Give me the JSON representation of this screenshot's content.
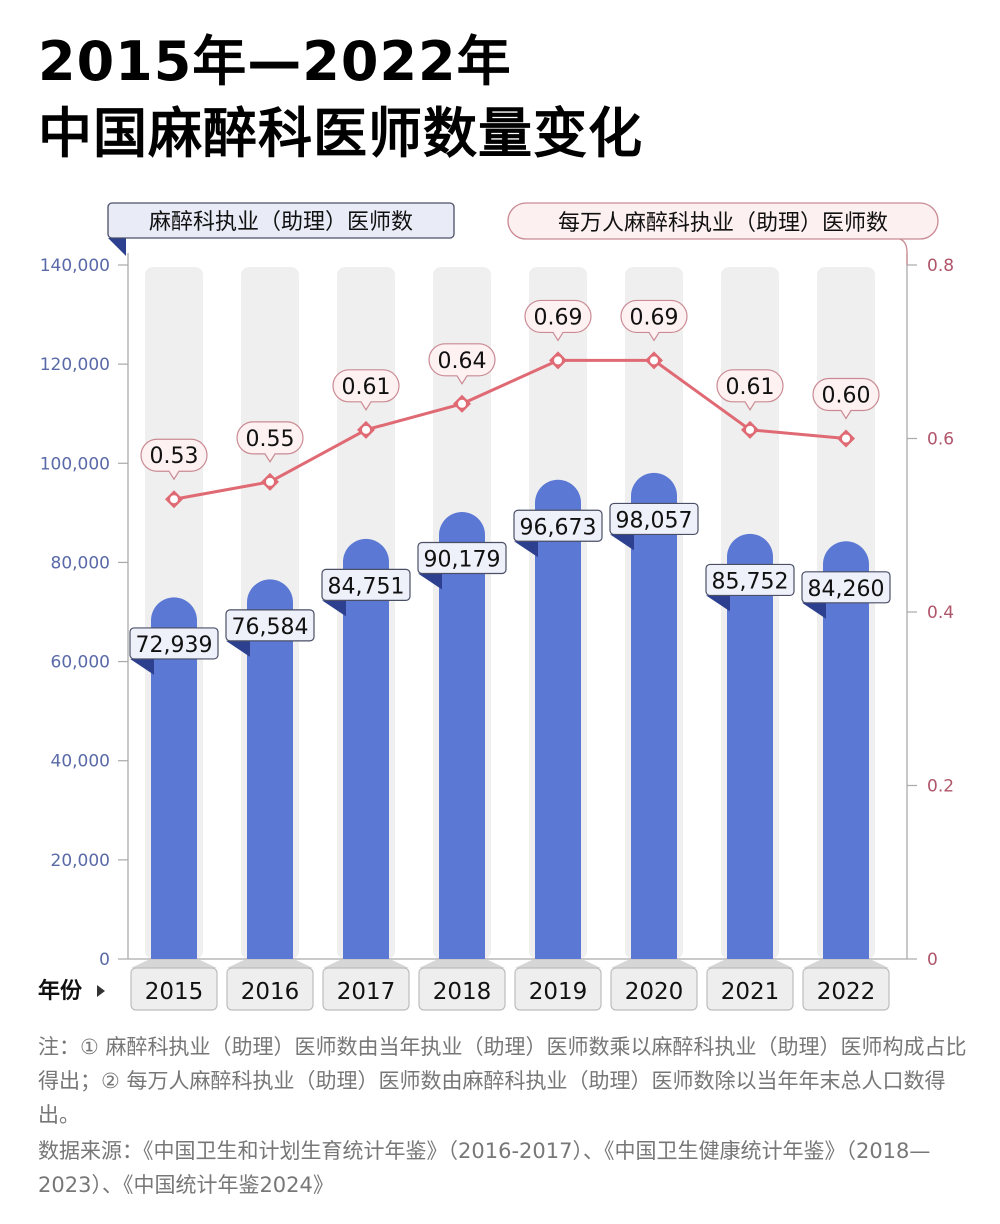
{
  "title": {
    "line1": "2015年—2022年",
    "line2": "中国麻醉科医师数量变化"
  },
  "chart_data": {
    "type": "bar",
    "categories": [
      "2015",
      "2016",
      "2017",
      "2018",
      "2019",
      "2020",
      "2021",
      "2022"
    ],
    "xlabel": "年份",
    "series": [
      {
        "name": "麻醉科执业（助理）医师数",
        "type": "bar",
        "axis": "left",
        "color": "#5b78d4",
        "values": [
          72939,
          76584,
          84751,
          90179,
          96673,
          98057,
          85752,
          84260
        ],
        "labels": [
          "72,939",
          "76,584",
          "84,751",
          "90,179",
          "96,673",
          "98,057",
          "85,752",
          "84,260"
        ]
      },
      {
        "name": "每万人麻醉科执业（助理）医师数",
        "type": "line",
        "axis": "right",
        "color": "#e06a74",
        "values": [
          0.53,
          0.55,
          0.61,
          0.64,
          0.69,
          0.69,
          0.61,
          0.6
        ],
        "labels": [
          "0.53",
          "0.55",
          "0.61",
          "0.64",
          "0.69",
          "0.69",
          "0.61",
          "0.60"
        ]
      }
    ],
    "y_left": {
      "lim": [
        0,
        140000
      ],
      "ticks": [
        0,
        20000,
        40000,
        60000,
        80000,
        100000,
        120000,
        140000
      ],
      "tick_labels": [
        "0",
        "20,000",
        "40,000",
        "60,000",
        "80,000",
        "100,000",
        "120,000",
        "140,000"
      ],
      "color": "#5a6aa8"
    },
    "y_right": {
      "lim": [
        0,
        0.8
      ],
      "ticks": [
        0,
        0.2,
        0.4,
        0.6,
        0.8
      ],
      "tick_labels": [
        "0",
        "0.2",
        "0.4",
        "0.6",
        "0.8"
      ],
      "color": "#b0566a"
    },
    "grid": false
  },
  "notes": "注：① 麻醉科执业（助理）医师数由当年执业（助理）医师数乘以麻醉科执业（助理）医师构成占比得出；② 每万人麻醉科执业（助理）医师数由麻醉科执业（助理）医师数除以当年年末总人口数得出。",
  "source": "数据来源：《中国卫生和计划生育统计年鉴》（2016-2017）、《中国卫生健康统计年鉴》（2018—2023）、《中国统计年鉴2024》"
}
